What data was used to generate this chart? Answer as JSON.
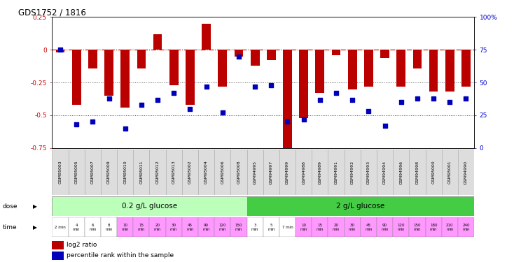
{
  "title": "GDS1752 / 1816",
  "samples": [
    "GSM95003",
    "GSM95005",
    "GSM95007",
    "GSM95009",
    "GSM95010",
    "GSM95011",
    "GSM95012",
    "GSM95013",
    "GSM95002",
    "GSM95004",
    "GSM95006",
    "GSM95008",
    "GSM94995",
    "GSM94997",
    "GSM94999",
    "GSM94988",
    "GSM94989",
    "GSM94991",
    "GSM94992",
    "GSM94993",
    "GSM94994",
    "GSM94996",
    "GSM94998",
    "GSM95000",
    "GSM95001",
    "GSM94990"
  ],
  "log2_ratio": [
    -0.02,
    -0.42,
    -0.14,
    -0.35,
    -0.44,
    -0.14,
    0.12,
    -0.27,
    -0.42,
    0.2,
    -0.28,
    -0.05,
    -0.12,
    -0.08,
    -0.78,
    -0.52,
    -0.33,
    -0.04,
    -0.3,
    -0.28,
    -0.06,
    -0.28,
    -0.14,
    -0.32,
    -0.32,
    -0.28
  ],
  "percentile": [
    75,
    18,
    20,
    38,
    15,
    33,
    37,
    42,
    30,
    47,
    27,
    70,
    47,
    48,
    20,
    22,
    37,
    42,
    37,
    28,
    17,
    35,
    38,
    38,
    35,
    38
  ],
  "dose_groups": [
    {
      "label": "0.2 g/L glucose",
      "start": 0,
      "end": 12,
      "color": "#bbffbb"
    },
    {
      "label": "2 g/L glucose",
      "start": 12,
      "end": 26,
      "color": "#44cc44"
    }
  ],
  "time_labels": [
    "2 min",
    "4\nmin",
    "6\nmin",
    "8\nmin",
    "10\nmin",
    "15\nmin",
    "20\nmin",
    "30\nmin",
    "45\nmin",
    "90\nmin",
    "120\nmin",
    "150\nmin",
    "3\nmin",
    "5\nmin",
    "7 min",
    "10\nmin",
    "15\nmin",
    "20\nmin",
    "30\nmin",
    "45\nmin",
    "90\nmin",
    "120\nmin",
    "150\nmin",
    "180\nmin",
    "210\nmin",
    "240\nmin"
  ],
  "time_white_cells": [
    0,
    1,
    2,
    3,
    12,
    13,
    14
  ],
  "time_pink_color": "#ff99ff",
  "time_white_color": "#ffffff",
  "ylim_left": [
    -0.75,
    0.25
  ],
  "ylim_right": [
    0,
    100
  ],
  "bar_color": "#bb0000",
  "dot_color": "#0000bb",
  "dot_size": 18,
  "hline_color": "#cc0000",
  "dotted_line_color": "#555555",
  "bg_color": "#ffffff",
  "axis_color_left": "#cc0000",
  "axis_color_right": "#0000cc",
  "sample_box_color": "#dddddd",
  "sample_box_edge": "#aaaaaa"
}
